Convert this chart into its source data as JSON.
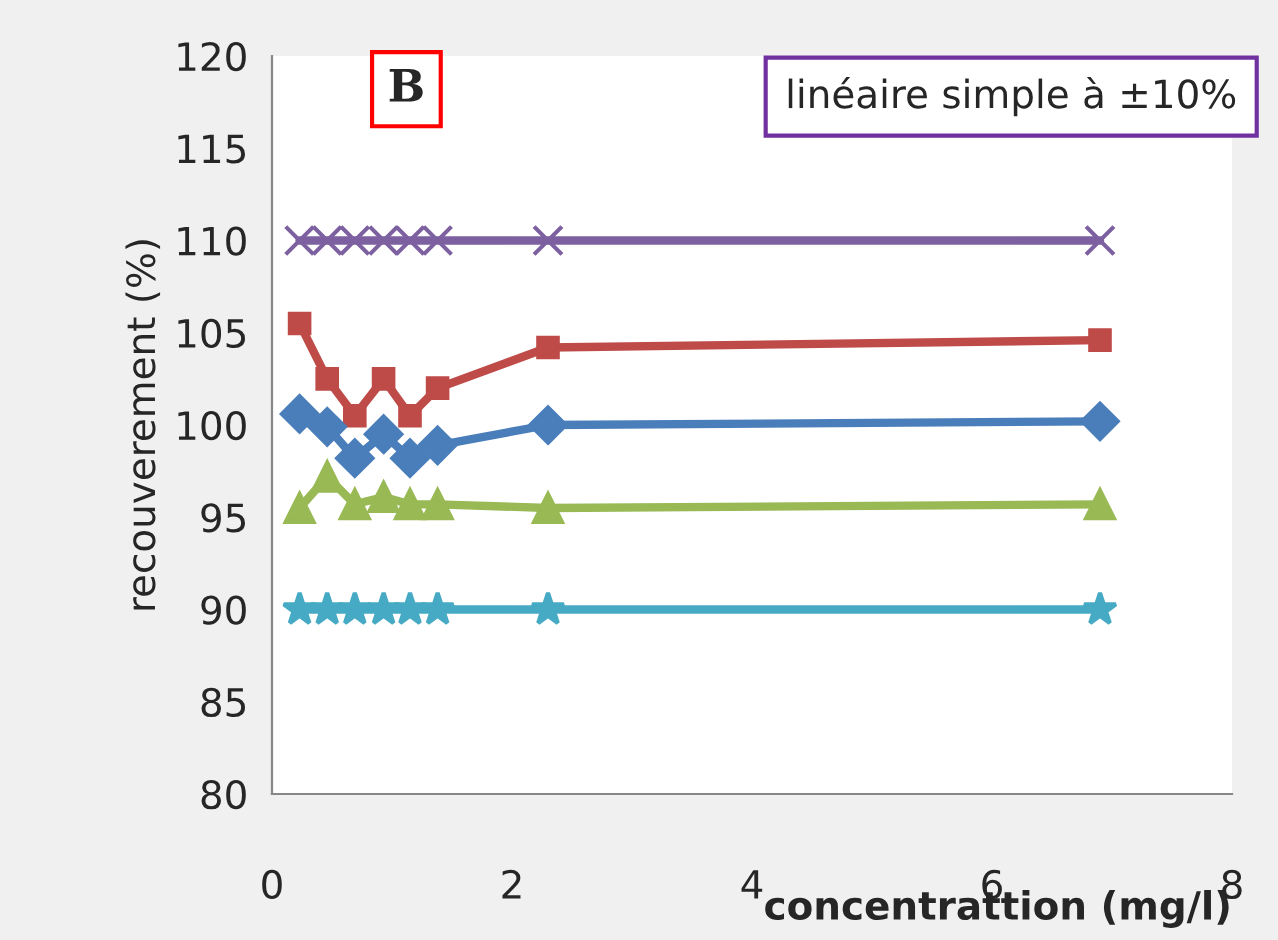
{
  "chart_data": {
    "type": "line",
    "xlabel": "concentrattion (mg/l)",
    "ylabel": "recouverement (%)",
    "x": [
      0.23,
      0.46,
      0.69,
      0.93,
      1.15,
      1.38,
      2.3,
      6.9
    ],
    "series": [
      {
        "color": "#be4b48",
        "marker": "square",
        "values": [
          105.5,
          102.5,
          100.5,
          102.5,
          100.5,
          102.0,
          104.2,
          104.6
        ]
      },
      {
        "color": "#4a7ebb",
        "marker": "diamond",
        "values": [
          100.6,
          99.9,
          98.2,
          99.5,
          98.2,
          98.9,
          100.0,
          100.2
        ]
      },
      {
        "color": "#98b954",
        "marker": "triangle",
        "values": [
          95.5,
          97.2,
          95.7,
          96.1,
          95.7,
          95.7,
          95.5,
          95.7
        ]
      },
      {
        "color": "#7d60a0",
        "marker": "cross",
        "values": [
          110,
          110,
          110,
          110,
          110,
          110,
          110,
          110
        ]
      },
      {
        "color": "#46aac5",
        "marker": "star",
        "values": [
          90,
          90,
          90,
          90,
          90,
          90,
          90,
          90
        ]
      }
    ],
    "annotations": [
      "B",
      "linéaire simple à ±10%"
    ],
    "xlim": [
      0,
      8
    ],
    "xticks": [
      0,
      2,
      4,
      6,
      8
    ],
    "ylim": [
      80,
      120
    ],
    "yticks": [
      80,
      85,
      90,
      95,
      100,
      105,
      110,
      115,
      120
    ],
    "grid": false,
    "legend": false,
    "line_style": "solid"
  }
}
